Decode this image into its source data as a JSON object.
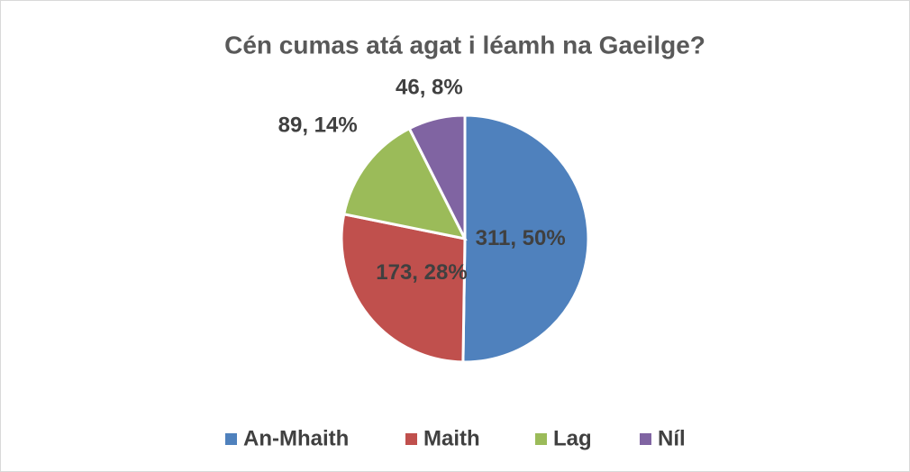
{
  "chart_data": {
    "type": "pie",
    "title": "Cén cumas atá agat i léamh na Gaeilge?",
    "categories": [
      "An-Mhaith",
      "Maith",
      "Lag",
      "Níl"
    ],
    "values": [
      311,
      173,
      89,
      46
    ],
    "value_labels": [
      "311, 50%",
      "173, 28%",
      "89, 14%",
      "46, 8%"
    ],
    "colors": [
      "#4f81bd",
      "#c0504d",
      "#9bbb59",
      "#8064a2"
    ],
    "legend": "bottom"
  }
}
